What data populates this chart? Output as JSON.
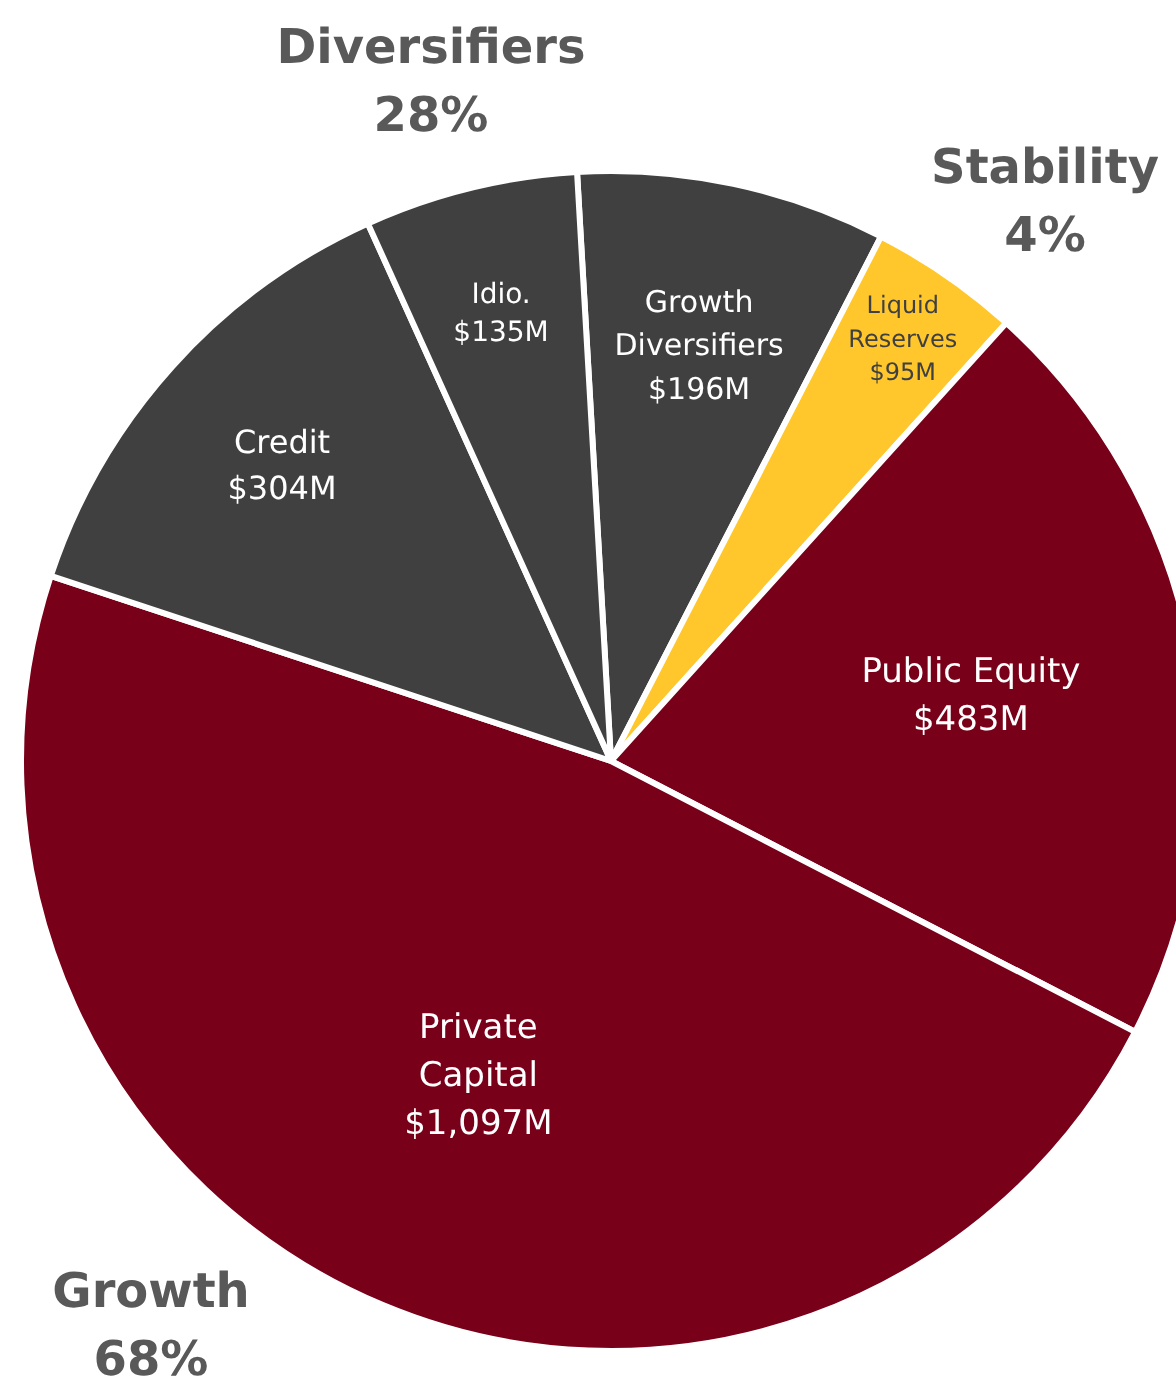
{
  "chart_data": {
    "type": "pie",
    "categories": [
      "Growth\nDiversifiers",
      "Liquid\nReserves",
      "Public Equity",
      "Private\nCapital",
      "Credit",
      "Idio."
    ],
    "values": [
      196,
      95,
      483,
      1097,
      304,
      135
    ],
    "colors": [
      "#404040",
      "#ffc72c",
      "#780019",
      "#780019",
      "#404040",
      "#404040"
    ],
    "value_labels": [
      "$196M",
      "$95M",
      "$483M",
      "$1,097M",
      "$304M",
      "$135M"
    ],
    "annotations": [
      "Diversifiers\n28%",
      "Stability\n4%",
      "Growth\n68%"
    ]
  }
}
